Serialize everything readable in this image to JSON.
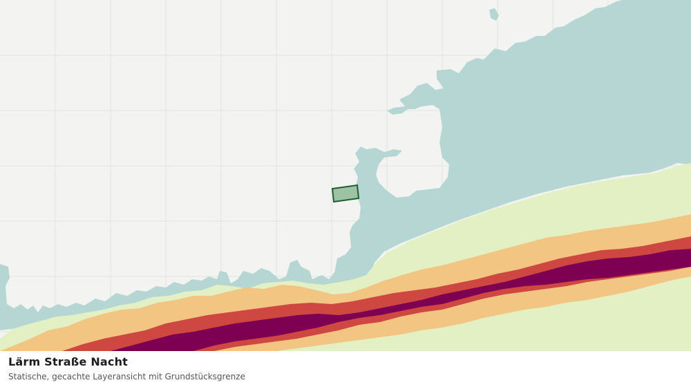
{
  "layer": {
    "title": "Lärm Straße Nacht",
    "subtitle": "Statische, gecachte Layeransicht mit Grundstücksgrenze"
  },
  "legend_colors": {
    "background": "#f3f4f2",
    "grid_lines": "#e2e4e1",
    "quiet_zone": "#b6d6d3",
    "noise_low": "#e2f0c4",
    "noise_medium": "#f3c583",
    "noise_high": "#cf4741",
    "noise_very_high": "#7e0053",
    "parcel_fill": "#9dc3a3",
    "parcel_border": "#1f5b33"
  }
}
